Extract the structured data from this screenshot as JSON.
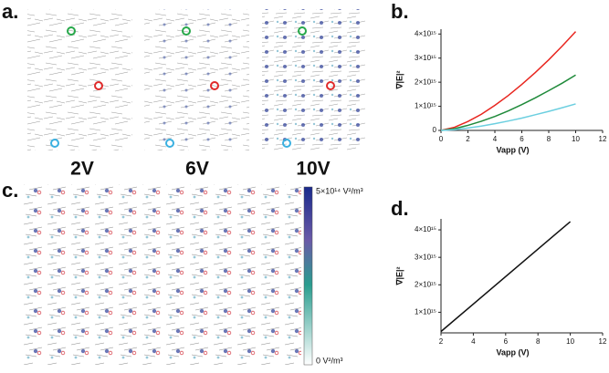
{
  "panel_labels": [
    "a.",
    "b.",
    "c.",
    "d."
  ],
  "voltage_labels": [
    "2V",
    "6V",
    "10V"
  ],
  "colorbar": {
    "max_label": "5×10¹⁴ V²/m³",
    "min_label": "0 V²/m³"
  },
  "chart_data": [
    {
      "type": "line",
      "x_label": "Vapp (V)",
      "y_label": "∇|E|²",
      "x": [
        0,
        1,
        2,
        3,
        4,
        5,
        6,
        7,
        8,
        9,
        10
      ],
      "series": [
        {
          "color": "#e8261f",
          "values": [
            0,
            130000000000000.0,
            370000000000000.0,
            670000000000000.0,
            1040000000000000.0,
            1450000000000000.0,
            1910000000000000.0,
            2400000000000000.0,
            2930000000000000.0,
            3500000000000000.0,
            4100000000000000.0
          ]
        },
        {
          "color": "#1f8a3a",
          "values": [
            0,
            70000000000000.0,
            210000000000000.0,
            380000000000000.0,
            580000000000000.0,
            810000000000000.0,
            1070000000000000.0,
            1350000000000000.0,
            1650000000000000.0,
            1960000000000000.0,
            2300000000000000.0
          ]
        },
        {
          "color": "#6ccfe0",
          "values": [
            0,
            30000000000000.0,
            100000000000000.0,
            180000000000000.0,
            280000000000000.0,
            390000000000000.0,
            510000000000000.0,
            650000000000000.0,
            790000000000000.0,
            940000000000000.0,
            1100000000000000.0
          ]
        }
      ],
      "xlim": [
        0,
        12
      ],
      "xticks": [
        0,
        2,
        4,
        6,
        8,
        10,
        12
      ],
      "ylim": [
        0,
        4200000000000000.0
      ],
      "yticks": [
        0,
        {
          "value": 1000000000000000.0,
          "label": "1×10¹⁵"
        },
        {
          "value": 2000000000000000.0,
          "label": "2×10¹⁵"
        },
        {
          "value": 3000000000000000.0,
          "label": "3×10¹⁵"
        },
        {
          "value": 4000000000000000.0,
          "label": "4×10¹⁵"
        }
      ]
    },
    {
      "type": "line",
      "x_label": "Vapp (V)",
      "y_label": "∇|E|²",
      "x": [
        2,
        10
      ],
      "series": [
        {
          "color": "#111111",
          "values": [
            300000000000000.0,
            4300000000000000.0
          ]
        }
      ],
      "xlim": [
        2,
        12
      ],
      "xticks": [
        2,
        4,
        6,
        8,
        10,
        12
      ],
      "ylim": [
        250000000000000.0,
        4400000000000000.0
      ],
      "yticks": [
        {
          "value": 1000000000000000.0,
          "label": "1×10¹⁵"
        },
        {
          "value": 2000000000000000.0,
          "label": "2×10¹⁵"
        },
        {
          "value": 3000000000000000.0,
          "label": "3×10¹⁵"
        },
        {
          "value": 4000000000000000.0,
          "label": "4×10¹⁵"
        }
      ]
    }
  ]
}
